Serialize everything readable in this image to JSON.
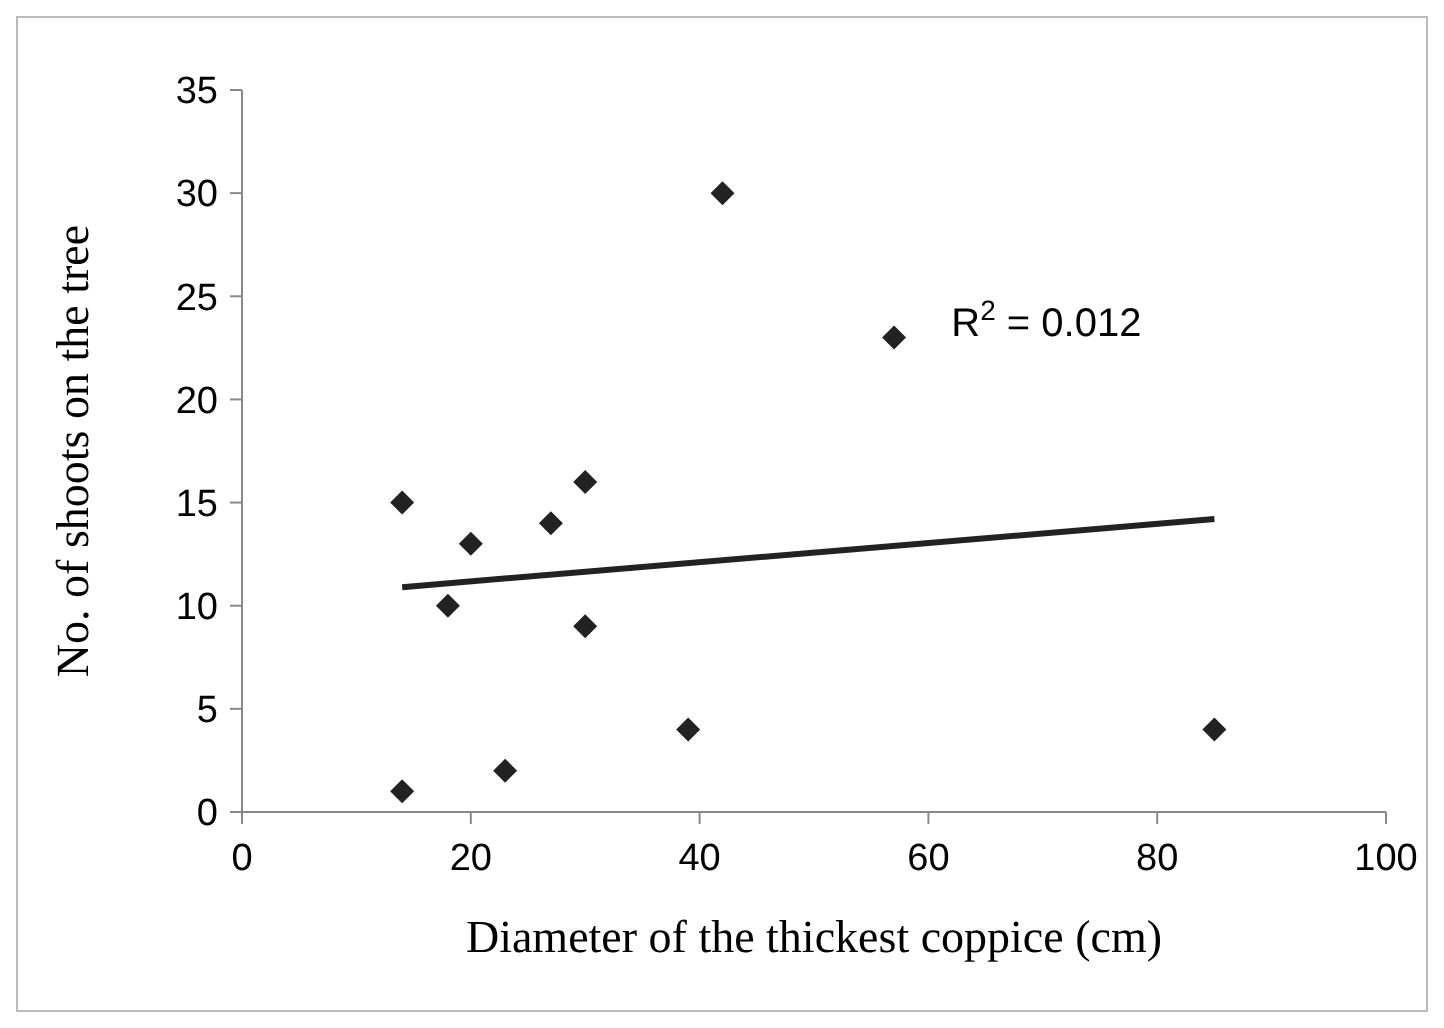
{
  "chart_data": {
    "type": "scatter",
    "xlabel": "Diameter of the thickest coppice (cm)",
    "ylabel": "No. of shoots on the tree",
    "x": [
      14,
      14,
      18,
      20,
      23,
      27,
      30,
      30,
      39,
      42,
      57,
      85
    ],
    "series": [
      {
        "color": "#222222",
        "marker": "diamond",
        "values": [
          15,
          1,
          10,
          13,
          2,
          14,
          16,
          9,
          4,
          30,
          23,
          4
        ]
      },
      {
        "type": "line",
        "color": "#222222",
        "x": [
          14,
          85
        ],
        "values": [
          10.9,
          14.2
        ],
        "marker": "none",
        "line_style": "solid"
      }
    ],
    "annotations": [
      "R$^{2}$ = 0.012"
    ],
    "xlim": [
      0,
      100
    ],
    "xticks": [
      0,
      20,
      40,
      60,
      80,
      100
    ],
    "ylim": [
      0,
      35
    ],
    "yticks": [
      0,
      5,
      10,
      15,
      20,
      25,
      30,
      35
    ],
    "grid": false
  }
}
